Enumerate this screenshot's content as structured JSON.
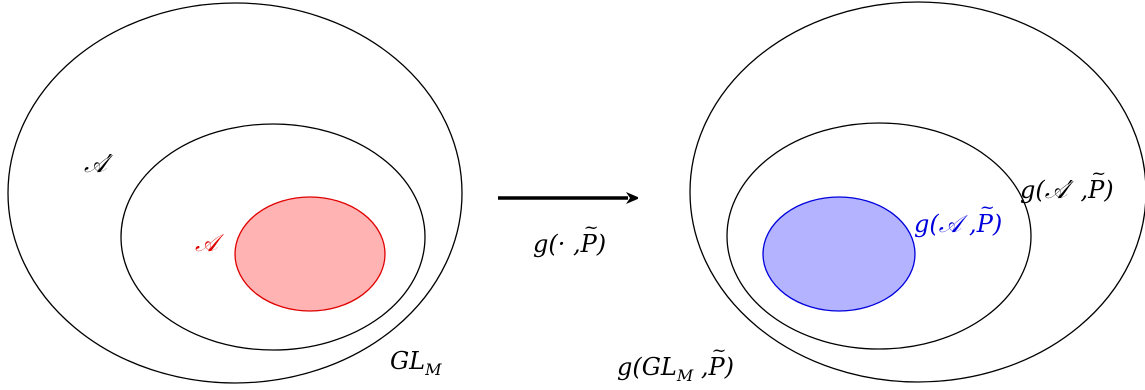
{
  "left_panel": {
    "outer_label_main": "GL",
    "outer_label_sub": "M",
    "middle_label": "𝒜′",
    "inner_label": "𝒜",
    "inner_color": "#e00000",
    "inner_fill": "#ffb3b3"
  },
  "arrow": {
    "label_func": "g(· ,",
    "label_var": "P",
    "label_close": ")"
  },
  "right_panel": {
    "outer_label_func": "g(GL",
    "outer_label_sub": "M",
    "outer_label_sep": " ,",
    "outer_label_var": "P",
    "outer_label_close": ")",
    "middle_label_func": "g(𝒜′ ,",
    "middle_label_var": "P",
    "middle_label_close": ")",
    "inner_label_func": "g(𝒜 ,",
    "inner_label_var": "P",
    "inner_label_close": ")",
    "inner_color": "#0000dd",
    "inner_fill": "#b3b3ff"
  }
}
